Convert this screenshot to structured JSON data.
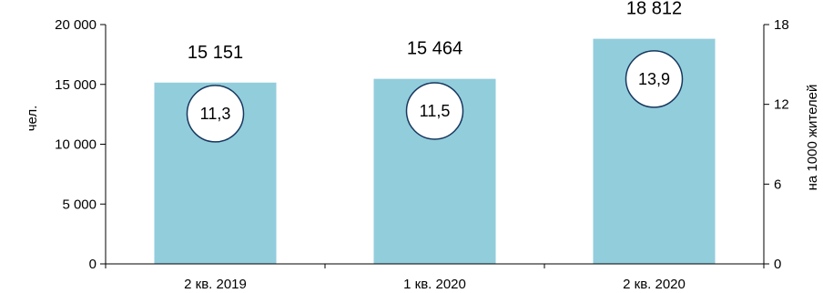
{
  "chart_data": {
    "type": "bar",
    "categories": [
      "2 кв. 2019",
      "1 кв. 2020",
      "2 кв. 2020"
    ],
    "series": [
      {
        "values": [
          15151,
          15464,
          18812
        ],
        "color": "#92cddc"
      },
      {
        "values": [
          11.3,
          11.5,
          13.9
        ],
        "axis": "secondary",
        "marker": "circle"
      }
    ],
    "bar_labels": [
      "15 151",
      "15 464",
      "18 812"
    ],
    "marker_labels": [
      "11,3",
      "11,5",
      "13,9"
    ],
    "ylabel": "чел.",
    "y2label": "на 1000 жителей",
    "ylim": [
      0,
      20000
    ],
    "y2lim": [
      0,
      18
    ],
    "yticks": [
      "0",
      "5 000",
      "10 000",
      "15 000",
      "20 000"
    ],
    "y2ticks": [
      "0",
      "6",
      "12",
      "18"
    ],
    "grid": false,
    "colors": {
      "bar": "#92cddc",
      "marker_fill": "#ffffff",
      "marker_stroke": "#17375e"
    }
  }
}
